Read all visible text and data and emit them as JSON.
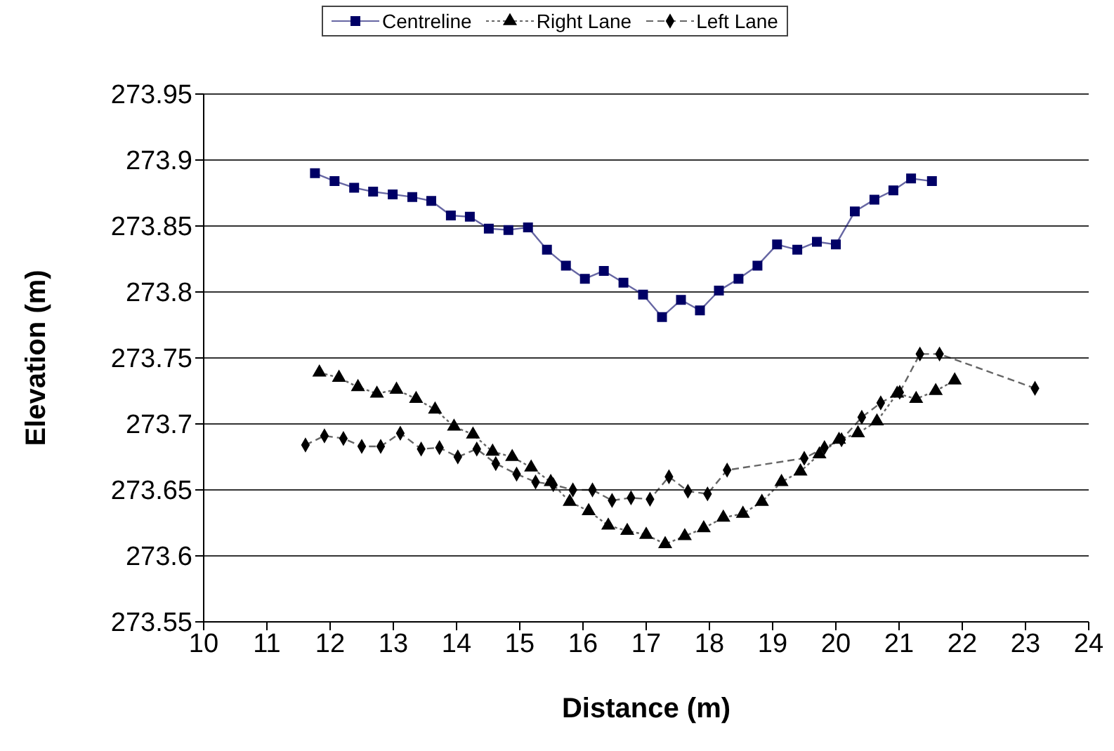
{
  "chart_data": {
    "type": "line",
    "xlabel": "Distance (m)",
    "ylabel": "Elevation (m)",
    "xlim": [
      10,
      24
    ],
    "xticks": [
      10,
      11,
      12,
      13,
      14,
      15,
      16,
      17,
      18,
      19,
      20,
      21,
      22,
      23,
      24
    ],
    "ylim": [
      273.55,
      273.95
    ],
    "yticks": [
      273.55,
      273.6,
      273.65,
      273.7,
      273.75,
      273.8,
      273.85,
      273.9,
      273.95
    ],
    "grid": "y",
    "legend": "top",
    "series": [
      {
        "name": "Centreline",
        "color": "#000066",
        "marker": "square",
        "line_style": "solid",
        "x": [
          11.76,
          12.07,
          12.38,
          12.68,
          12.99,
          13.3,
          13.6,
          13.91,
          14.21,
          14.51,
          14.82,
          15.13,
          15.43,
          15.73,
          16.03,
          16.33,
          16.64,
          16.95,
          17.25,
          17.55,
          17.85,
          18.15,
          18.46,
          18.76,
          19.07,
          19.39,
          19.7,
          20.0,
          20.3,
          20.61,
          20.91,
          21.19,
          21.52
        ],
        "values": [
          273.89,
          273.884,
          273.879,
          273.876,
          273.874,
          273.872,
          273.869,
          273.858,
          273.857,
          273.848,
          273.847,
          273.849,
          273.832,
          273.82,
          273.81,
          273.816,
          273.807,
          273.798,
          273.781,
          273.794,
          273.786,
          273.801,
          273.81,
          273.82,
          273.836,
          273.832,
          273.838,
          273.836,
          273.861,
          273.87,
          273.877,
          273.886,
          273.884
        ]
      },
      {
        "name": "Right Lane",
        "color": "#000000",
        "marker": "triangle",
        "line_style": "dotted",
        "x": [
          11.83,
          12.14,
          12.44,
          12.74,
          13.05,
          13.36,
          13.66,
          13.96,
          14.26,
          14.57,
          14.88,
          15.18,
          15.49,
          15.79,
          16.09,
          16.4,
          16.7,
          17.0,
          17.3,
          17.61,
          17.91,
          18.22,
          18.53,
          18.83,
          19.14,
          19.44,
          19.74,
          20.05,
          20.35,
          20.65,
          20.97,
          21.27,
          21.58,
          21.88
        ],
        "values": [
          273.739,
          273.735,
          273.728,
          273.723,
          273.726,
          273.719,
          273.711,
          273.698,
          273.692,
          273.679,
          273.675,
          273.667,
          273.656,
          273.641,
          273.634,
          273.623,
          273.619,
          273.616,
          273.609,
          273.615,
          273.621,
          273.629,
          273.632,
          273.641,
          273.656,
          273.664,
          273.677,
          273.688,
          273.693,
          273.702,
          273.723,
          273.719,
          273.725,
          273.733
        ]
      },
      {
        "name": "Left Lane",
        "color": "#000000",
        "marker": "diamond",
        "line_style": "dashed",
        "x": [
          11.61,
          11.91,
          12.21,
          12.5,
          12.8,
          13.11,
          13.44,
          13.73,
          14.02,
          14.32,
          14.62,
          14.95,
          15.25,
          15.53,
          15.84,
          16.15,
          16.46,
          16.76,
          17.06,
          17.36,
          17.66,
          17.97,
          18.28,
          19.5,
          19.82,
          20.09,
          20.41,
          20.71,
          21.01,
          21.33,
          21.64,
          23.15
        ],
        "values": [
          273.684,
          273.691,
          273.689,
          273.683,
          273.683,
          273.693,
          273.681,
          273.682,
          273.675,
          273.681,
          273.67,
          273.662,
          273.656,
          273.654,
          273.65,
          273.65,
          273.642,
          273.644,
          273.643,
          273.66,
          273.649,
          273.647,
          273.665,
          273.674,
          273.682,
          273.688,
          273.705,
          273.716,
          273.724,
          273.753,
          273.753,
          273.727
        ]
      }
    ]
  }
}
